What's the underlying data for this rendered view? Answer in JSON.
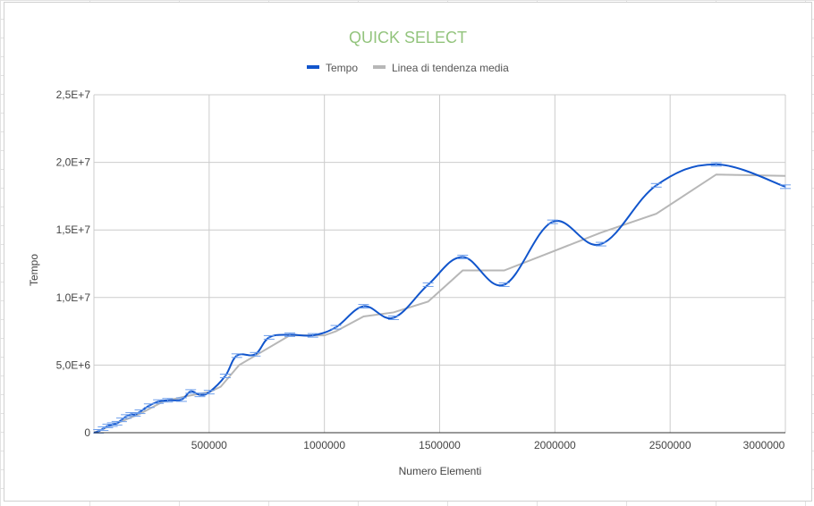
{
  "chart_data": {
    "type": "line",
    "title": "QUICK SELECT",
    "xlabel": "Numero Elementi",
    "ylabel": "Tempo",
    "xlim": [
      0,
      3000000
    ],
    "ylim": [
      0,
      25000000
    ],
    "x_ticks": [
      "500000",
      "1000000",
      "1500000",
      "2000000",
      "2500000",
      "3000000"
    ],
    "x_tick_values": [
      500000,
      1000000,
      1500000,
      2000000,
      2500000,
      3000000
    ],
    "y_ticks": [
      "0",
      "5,0E+6",
      "1,0E+7",
      "1,5E+7",
      "2,0E+7",
      "2,5E+7"
    ],
    "y_tick_values": [
      0,
      5000000,
      10000000,
      15000000,
      20000000,
      25000000
    ],
    "grid": true,
    "legend_position": "top-center",
    "series": [
      {
        "name": "Tempo",
        "color": "#1155cc",
        "error_bars": true,
        "x": [
          0,
          20000,
          40000,
          60000,
          80000,
          100000,
          120000,
          140000,
          160000,
          180000,
          200000,
          240000,
          280000,
          320000,
          380000,
          420000,
          460000,
          500000,
          570000,
          620000,
          700000,
          760000,
          850000,
          950000,
          1050000,
          1170000,
          1300000,
          1450000,
          1600000,
          1780000,
          1990000,
          2200000,
          2440000,
          2700000,
          3000000
        ],
        "y": [
          0,
          100000,
          300000,
          500000,
          600000,
          700000,
          950000,
          1200000,
          1350000,
          1350000,
          1550000,
          2000000,
          2300000,
          2400000,
          2450000,
          3050000,
          2800000,
          3000000,
          4200000,
          5700000,
          5800000,
          7050000,
          7250000,
          7200000,
          7800000,
          9350000,
          8500000,
          10950000,
          13000000,
          10950000,
          15600000,
          13950000,
          18300000,
          19850000,
          18200000
        ]
      },
      {
        "name": "Linea di tendenza media",
        "color": "#b7b7b7",
        "x": [
          0,
          100000,
          200000,
          300000,
          400000,
          500000,
          550000,
          630000,
          700000,
          850000,
          1000000,
          1050000,
          1170000,
          1300000,
          1450000,
          1600000,
          1780000,
          1990000,
          2200000,
          2440000,
          2700000,
          3000000
        ],
        "y": [
          0,
          700000,
          1400000,
          2300000,
          2700000,
          3000000,
          3400000,
          5000000,
          5700000,
          7200000,
          7200000,
          7500000,
          8600000,
          8900000,
          9700000,
          12000000,
          12000000,
          13400000,
          14800000,
          16200000,
          19100000,
          19000000
        ]
      }
    ]
  }
}
